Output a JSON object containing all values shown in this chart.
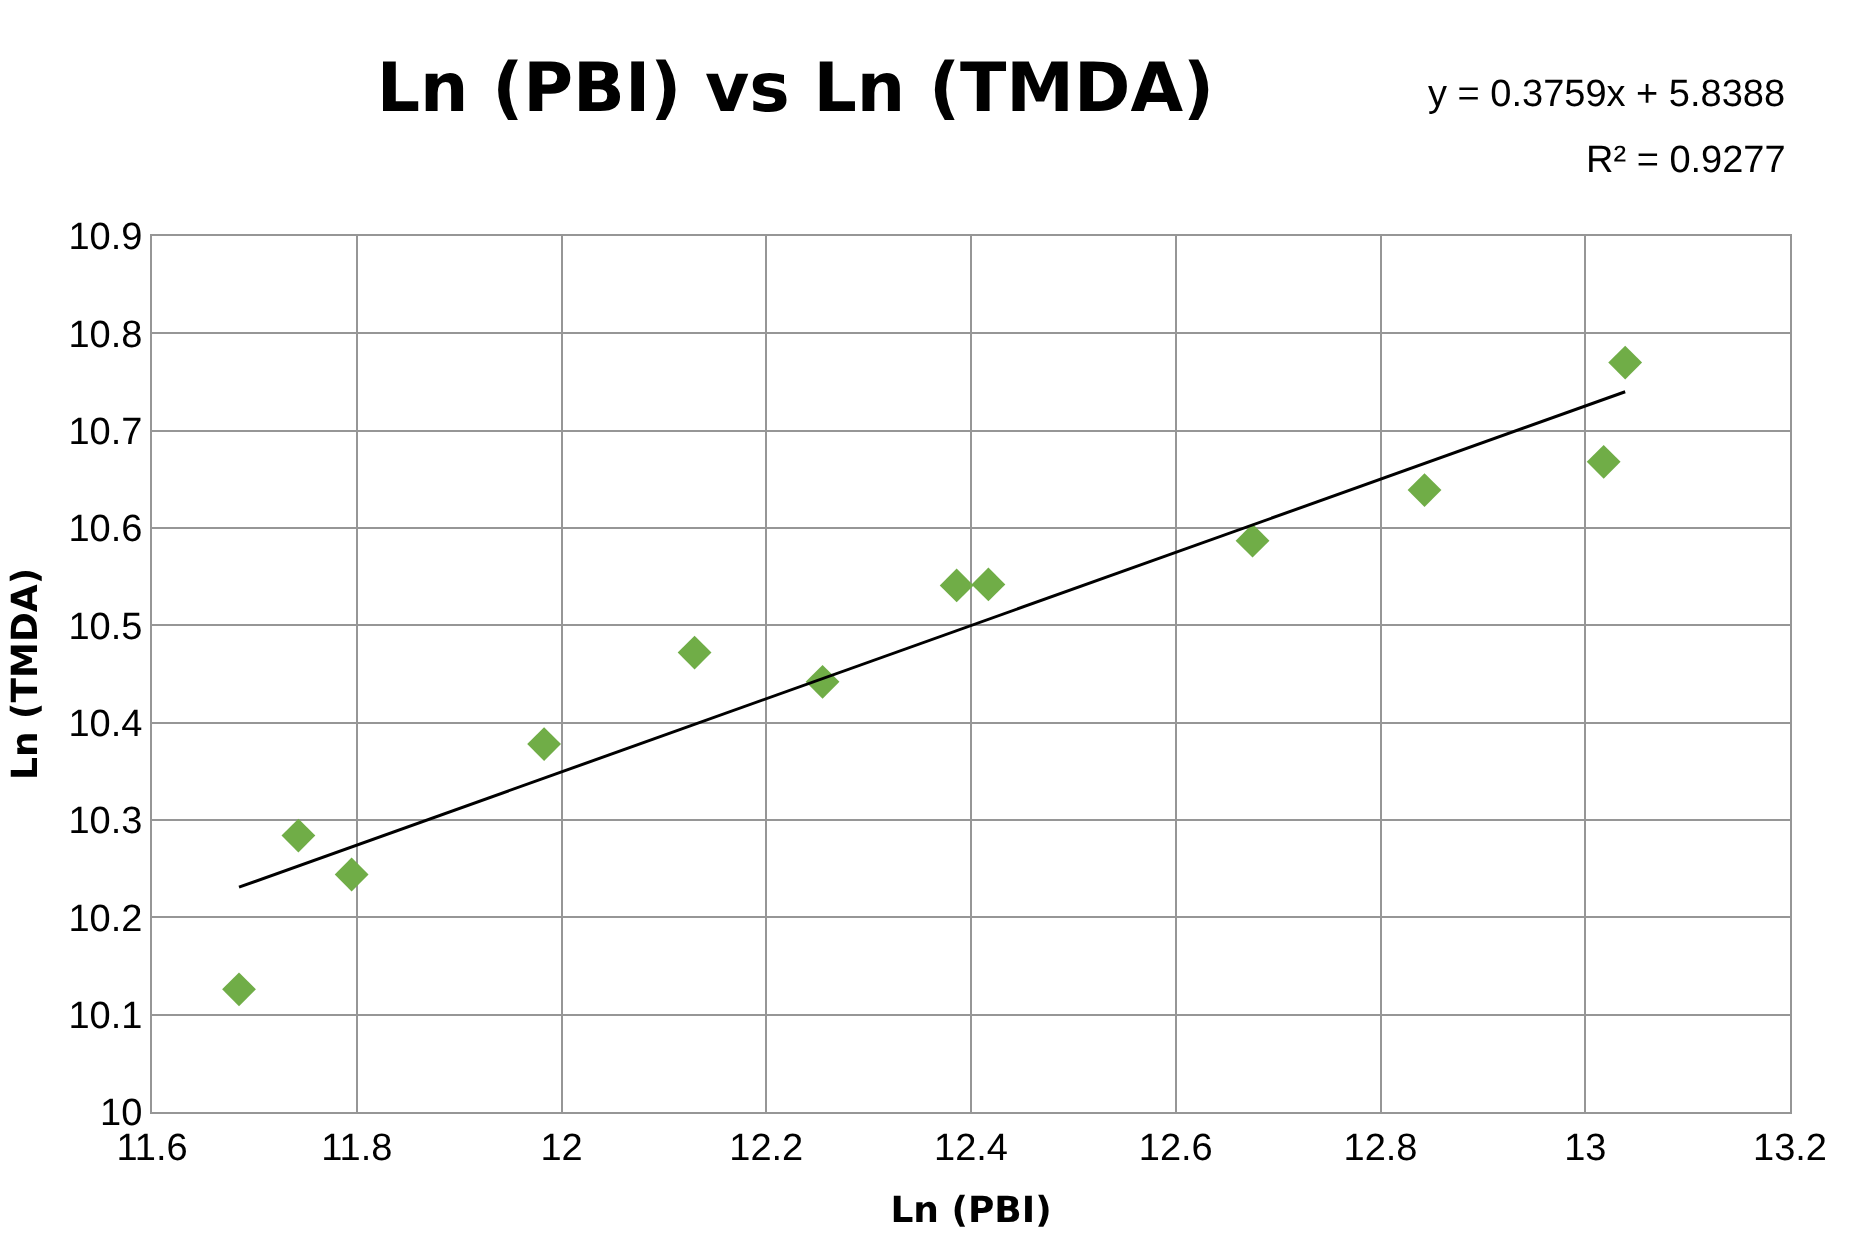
{
  "chart_data": {
    "type": "scatter",
    "title": "Ln (PBI) vs Ln (TMDA)",
    "xlabel": "Ln (PBI)",
    "ylabel": "Ln (TMDA)",
    "xlim": [
      11.6,
      13.2
    ],
    "xticks": [
      11.6,
      11.8,
      {
        "value": 12,
        "label": "12"
      },
      12.2,
      12.4,
      12.6,
      12.8,
      {
        "value": 13,
        "label": "13"
      },
      13.2
    ],
    "ylim": [
      10,
      10.9
    ],
    "yticks": [
      {
        "value": 10,
        "label": "10"
      },
      10.1,
      10.2,
      10.3,
      10.4,
      10.5,
      10.6,
      10.7,
      10.8,
      10.9
    ],
    "grid": true,
    "legend": false,
    "series": [
      {
        "marker": "diamond",
        "color": "#70ad47",
        "x": [
          11.685,
          11.743,
          11.795,
          11.983,
          12.13,
          12.255,
          12.386,
          12.417,
          12.675,
          12.843,
          13.018,
          13.039
        ],
        "values": [
          10.126,
          10.284,
          10.244,
          10.378,
          10.472,
          10.442,
          10.541,
          10.542,
          10.587,
          10.639,
          10.668,
          10.77
        ]
      },
      {
        "type": "line",
        "marker": "none",
        "color": "#000000",
        "x": [
          11.685,
          13.039
        ],
        "values": [
          10.231,
          10.74
        ]
      }
    ],
    "annotations": [
      "y = 0.3759x + 5.8388",
      "R² = 0.9277"
    ]
  }
}
